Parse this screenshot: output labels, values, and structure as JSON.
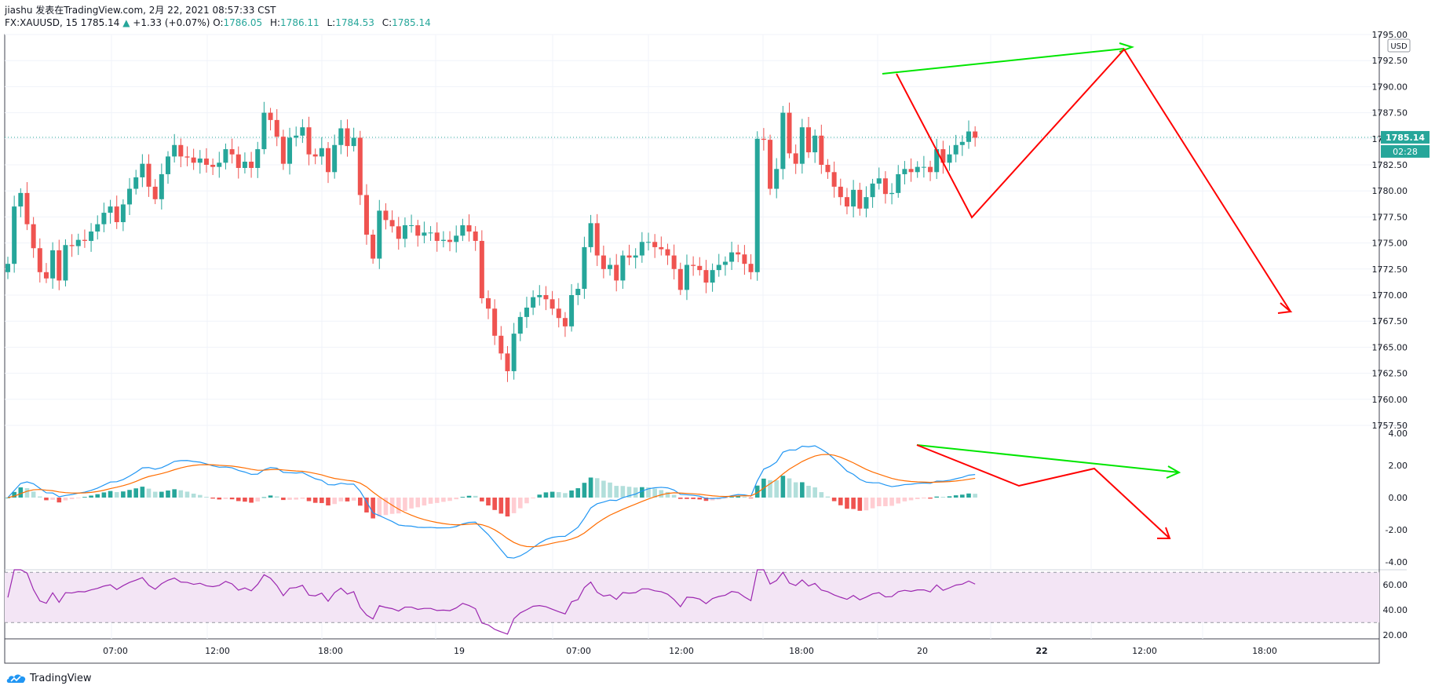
{
  "header": {
    "line1": "jiashu 发表在TradingView.com, 2月 22, 2021 08:57:33 CST",
    "symbol": "FX:XAUUSD, 15",
    "last": "1785.14",
    "change_arrow": "▲",
    "change": "+1.33 (+0.07%)",
    "o_label": "O:",
    "o_val": "1786.05",
    "h_label": "H:",
    "h_val": "1786.11",
    "l_label": "L:",
    "l_val": "1784.53",
    "c_label": "C:",
    "c_val": "1785.14"
  },
  "price_axis": {
    "currency": "USD",
    "last_price_label": "1785.14",
    "countdown_label": "02:28",
    "ticks": [
      "1795.00",
      "1792.50",
      "1790.00",
      "1787.50",
      "1785.00",
      "1782.50",
      "1780.00",
      "1777.50",
      "1775.00",
      "1772.50",
      "1770.00",
      "1767.50",
      "1765.00",
      "1762.50",
      "1760.00",
      "1757.50"
    ],
    "macd_ticks": [
      "4.00",
      "2.00",
      "0.00",
      "-2.00",
      "-4.00"
    ],
    "rsi_ticks": [
      "60.00",
      "40.00",
      "20.00"
    ]
  },
  "time_axis": {
    "ticks": [
      "07:00",
      "12:00",
      "18:00",
      "19",
      "07:00",
      "12:00",
      "18:00",
      "20",
      "22",
      "12:00",
      "18:00"
    ]
  },
  "brand": "TradingView",
  "colors": {
    "up": "#26a69a",
    "down": "#ef5350",
    "macd_line": "#2196f3",
    "signal_line": "#ff6d00",
    "rsi_line": "#9c27b0",
    "rsi_band": "#f3e5f5",
    "drawing_red": "#ff0000",
    "drawing_green": "#00e600"
  },
  "chart_data": [
    {
      "type": "candlestick",
      "title": "FX:XAUUSD, 15",
      "ylabel": "USD",
      "ylim": [
        1757.5,
        1795.0
      ],
      "close": [
        1773.0,
        1778.5,
        1779.8,
        1776.8,
        1774.5,
        1772.2,
        1771.6,
        1774.3,
        1771.4,
        1774.8,
        1774.7,
        1775.3,
        1775.2,
        1776.1,
        1776.8,
        1777.9,
        1778.5,
        1777.0,
        1778.7,
        1780.2,
        1781.3,
        1782.6,
        1780.4,
        1779.2,
        1781.6,
        1783.3,
        1784.4,
        1783.3,
        1783.2,
        1782.7,
        1783.1,
        1782.5,
        1782.3,
        1782.7,
        1784.0,
        1783.5,
        1782.2,
        1782.8,
        1782.2,
        1784.0,
        1787.5,
        1786.8,
        1785.2,
        1782.6,
        1785.1,
        1785.3,
        1786.1,
        1783.5,
        1783.3,
        1784.1,
        1781.8,
        1784.4,
        1786.0,
        1784.3,
        1785.1,
        1779.6,
        1775.8,
        1773.5,
        1778.1,
        1777.2,
        1776.6,
        1775.4,
        1776.7,
        1776.7,
        1775.7,
        1776.0,
        1776.0,
        1775.2,
        1775.3,
        1775.1,
        1775.7,
        1776.7,
        1776.1,
        1775.2,
        1769.7,
        1768.7,
        1766.1,
        1764.4,
        1762.7,
        1766.3,
        1767.9,
        1768.8,
        1769.8,
        1770.0,
        1769.6,
        1768.7,
        1767.8,
        1767.0,
        1770.0,
        1770.6,
        1774.6,
        1776.9,
        1773.8,
        1772.5,
        1772.9,
        1771.4,
        1773.8,
        1773.6,
        1773.8,
        1775.1,
        1775.1,
        1774.6,
        1774.4,
        1773.8,
        1772.5,
        1770.5,
        1772.9,
        1772.8,
        1772.4,
        1771.2,
        1772.4,
        1772.9,
        1773.2,
        1774.1,
        1773.9,
        1773.0,
        1772.2,
        1785.0,
        1784.9,
        1780.2,
        1782.1,
        1787.5,
        1783.6,
        1782.6,
        1786.1,
        1783.7,
        1785.3,
        1782.5,
        1781.8,
        1780.4,
        1779.4,
        1778.5,
        1780.1,
        1778.3,
        1779.4,
        1780.7,
        1781.2,
        1779.7,
        1779.8,
        1781.6,
        1782.1,
        1781.8,
        1782.3,
        1782.3,
        1781.8,
        1784.0,
        1782.7,
        1783.5,
        1784.4,
        1784.7,
        1785.7,
        1785.1
      ]
    },
    {
      "type": "line",
      "title": "MACD",
      "ylim": [
        -4.5,
        4.5
      ],
      "series": [
        {
          "values": []
        },
        {
          "values": []
        }
      ],
      "histogram": []
    },
    {
      "type": "line",
      "title": "RSI",
      "ylim": [
        17.0,
        72.0
      ],
      "upper_band": 70,
      "lower_band": 30,
      "series": [
        {
          "values": []
        }
      ]
    }
  ]
}
